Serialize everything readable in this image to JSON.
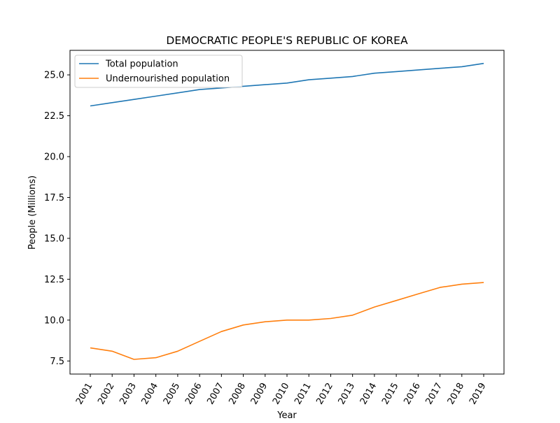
{
  "chart_data": {
    "type": "line",
    "title": "DEMOCRATIC PEOPLE'S REPUBLIC OF KOREA",
    "xlabel": "Year",
    "ylabel": "People (Millions)",
    "x": [
      "2001",
      "2002",
      "2003",
      "2004",
      "2005",
      "2006",
      "2007",
      "2008",
      "2009",
      "2010",
      "2011",
      "2012",
      "2013",
      "2014",
      "2015",
      "2016",
      "2017",
      "2018",
      "2019"
    ],
    "yticks": [
      "7.5",
      "10.0",
      "12.5",
      "15.0",
      "17.5",
      "20.0",
      "22.5",
      "25.0"
    ],
    "ylim": [
      6.7,
      26.5
    ],
    "grid": false,
    "legend_position": "upper-left",
    "series": [
      {
        "name": "Total population",
        "color": "#1f77b4",
        "values": [
          23.1,
          23.3,
          23.5,
          23.7,
          23.9,
          24.1,
          24.2,
          24.3,
          24.4,
          24.5,
          24.7,
          24.8,
          24.9,
          25.1,
          25.2,
          25.3,
          25.4,
          25.5,
          25.7
        ]
      },
      {
        "name": "Undernourished population",
        "color": "#ff7f0e",
        "values": [
          8.3,
          8.1,
          7.6,
          7.7,
          8.1,
          8.7,
          9.3,
          9.7,
          9.9,
          10.0,
          10.0,
          10.1,
          10.3,
          10.8,
          11.2,
          11.6,
          12.0,
          12.2,
          12.3
        ]
      }
    ]
  }
}
